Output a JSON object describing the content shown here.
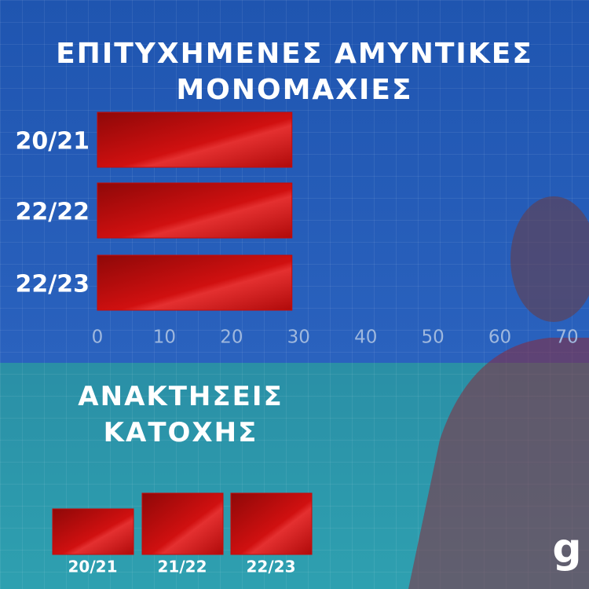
{
  "chart_data": [
    {
      "type": "hbar",
      "title": "ΕΠΙΤΥΧΗΜΕΝΕΣ ΑΜΥΝΤΙΚΕΣ ΜΟΝΟΜΑΧΙΕΣ",
      "categories": [
        "20/21",
        "22/22",
        "22/23"
      ],
      "values": [
        29,
        29,
        29
      ],
      "color": "#c40a0a",
      "xlim": [
        0,
        70
      ],
      "xticks": [
        0,
        10,
        20,
        30,
        40,
        50,
        60,
        70
      ]
    },
    {
      "type": "bar",
      "title": "ΑΝΑΚΤΗΣΕΙΣ ΚΑΤΟΧΗΣ",
      "categories": [
        "20/21",
        "21/22",
        "22/23"
      ],
      "values": [
        58,
        78,
        78
      ],
      "color": "#c40a0a"
    }
  ],
  "brand": "g"
}
